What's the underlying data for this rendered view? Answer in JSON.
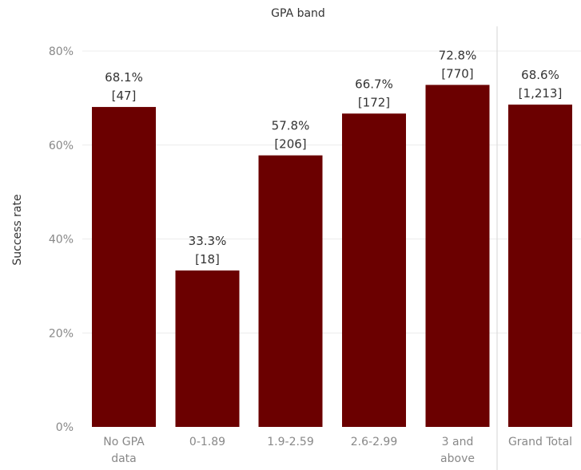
{
  "chart_data": {
    "type": "bar",
    "title": "GPA band",
    "ylabel": "Success rate",
    "xlabel": "",
    "ylim": [
      0,
      0.8
    ],
    "yticks": [
      {
        "value": 0,
        "label": "0%"
      },
      {
        "value": 0.2,
        "label": "20%"
      },
      {
        "value": 0.4,
        "label": "40%"
      },
      {
        "value": 0.6,
        "label": "60%"
      },
      {
        "value": 0.8,
        "label": "80%"
      }
    ],
    "grid": true,
    "bar_color": "#6b0000",
    "categories": [
      {
        "lines": [
          "No GPA",
          "data"
        ],
        "value": 0.681,
        "pct_label": "68.1%",
        "count_label": "[47]"
      },
      {
        "lines": [
          "0-1.89"
        ],
        "value": 0.333,
        "pct_label": "33.3%",
        "count_label": "[18]"
      },
      {
        "lines": [
          "1.9-2.59"
        ],
        "value": 0.578,
        "pct_label": "57.8%",
        "count_label": "[206]"
      },
      {
        "lines": [
          "2.6-2.99"
        ],
        "value": 0.667,
        "pct_label": "66.7%",
        "count_label": "[172]"
      },
      {
        "lines": [
          "3 and",
          "above"
        ],
        "value": 0.728,
        "pct_label": "72.8%",
        "count_label": "[770]"
      }
    ],
    "total": {
      "lines": [
        "Grand Total"
      ],
      "value": 0.686,
      "pct_label": "68.6%",
      "count_label": "[1,213]"
    }
  }
}
